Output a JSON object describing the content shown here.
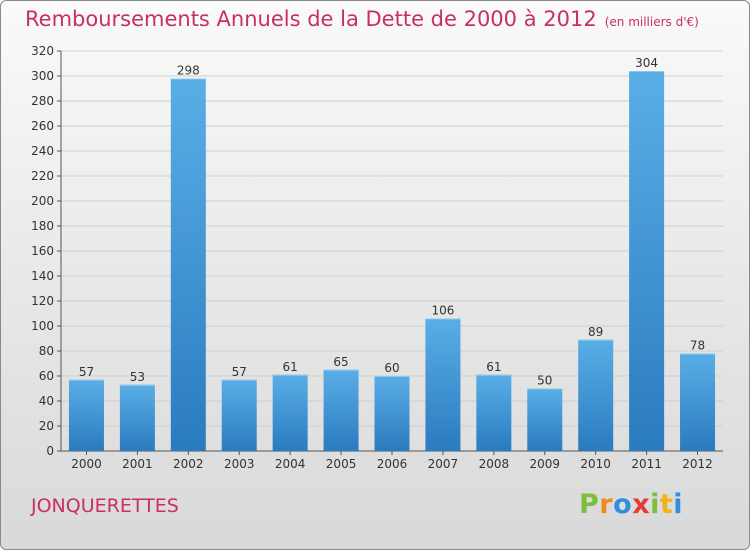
{
  "header": {
    "title": "Remboursements Annuels de la Dette de 2000 à 2012",
    "subtitle": "(en milliers d'€)"
  },
  "footer": {
    "town": "JONQUERETTES",
    "logo_letters": [
      "P",
      "r",
      "o",
      "x",
      "i",
      "t",
      "i"
    ]
  },
  "colors": {
    "title": "#c8305e",
    "bar_light": "#5aaee6",
    "bar_dark": "#2a7bbf",
    "logo": [
      "#7bbf3a",
      "#f08a1c",
      "#2f8fdc",
      "#e23a35",
      "#7bbf3a",
      "#f0b418",
      "#2f8fdc"
    ]
  },
  "chart_data": {
    "type": "bar",
    "title": "Remboursements Annuels de la Dette de 2000 à 2012",
    "subtitle": "(en milliers d'€)",
    "categories": [
      "2000",
      "2001",
      "2002",
      "2003",
      "2004",
      "2005",
      "2006",
      "2007",
      "2008",
      "2009",
      "2010",
      "2011",
      "2012"
    ],
    "values": [
      57,
      53,
      298,
      57,
      61,
      65,
      60,
      106,
      61,
      50,
      89,
      304,
      78
    ],
    "ylim": [
      0,
      320
    ],
    "yticks": [
      0,
      20,
      40,
      60,
      80,
      100,
      120,
      140,
      160,
      180,
      200,
      220,
      240,
      260,
      280,
      300,
      320
    ],
    "grid": true,
    "legend": "none"
  }
}
